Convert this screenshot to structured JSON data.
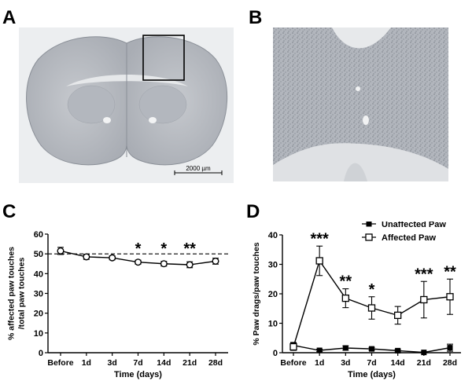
{
  "panels": {
    "a": "A",
    "b": "B",
    "c": "C",
    "d": "D"
  },
  "micrograph": {
    "scale_bar_label": "2000 µm"
  },
  "colors": {
    "tissue": "#b9bcc2",
    "tissue_dark": "#8e939b",
    "background_a": "#e9ebed",
    "background_b": "#e2e4e7",
    "line": "#000000"
  },
  "chart_data": [
    {
      "type": "line",
      "categories": [
        "Before",
        "1d",
        "3d",
        "7d",
        "14d",
        "21d",
        "28d"
      ],
      "ylabel": "% affected paw touches\n/total paw touches",
      "xlabel": "Time (days)",
      "ylim": [
        0,
        60
      ],
      "yticks": [
        0,
        10,
        20,
        30,
        40,
        50,
        60
      ],
      "reference_line": 50,
      "series": [
        {
          "values": [
            51.5,
            48.5,
            48,
            45.8,
            45,
            44.5,
            46.3
          ],
          "errors": [
            1.8,
            1.3,
            1.0,
            1.0,
            1.2,
            1.5,
            1.5
          ],
          "marker": "open-circle"
        }
      ],
      "significance": [
        "",
        "",
        "",
        "*",
        "*",
        "**",
        ""
      ]
    },
    {
      "type": "line",
      "categories": [
        "Before",
        "1d",
        "3d",
        "7d",
        "14d",
        "21d",
        "28d"
      ],
      "ylabel": "% Paw drags/paw touches",
      "xlabel": "Time (days)",
      "ylim": [
        0,
        40
      ],
      "yticks": [
        0,
        10,
        20,
        30,
        40
      ],
      "legend_position": "top-right",
      "series": [
        {
          "name": "Unaffected Paw",
          "marker": "filled-square",
          "values": [
            2.5,
            0.8,
            1.6,
            1.3,
            0.7,
            0.1,
            1.7
          ],
          "errors": [
            1.0,
            0.4,
            0.7,
            0.5,
            0.4,
            0.2,
            1.2
          ]
        },
        {
          "name": "Affected Paw",
          "marker": "open-square",
          "values": [
            2.0,
            31.2,
            18.5,
            15.2,
            12.7,
            18.0,
            19.0
          ],
          "errors": [
            1.2,
            5.0,
            3.2,
            3.8,
            3.0,
            6.2,
            6.0
          ]
        }
      ],
      "significance": [
        "",
        "***",
        "**",
        "*",
        "",
        "***",
        "**"
      ]
    }
  ]
}
